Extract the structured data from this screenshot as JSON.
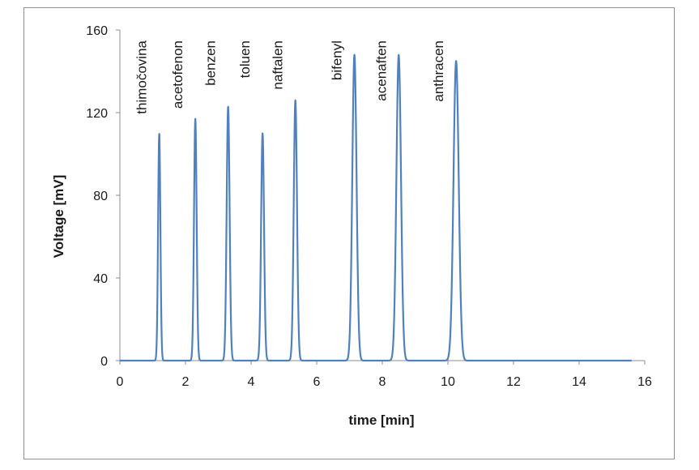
{
  "chart_data": {
    "type": "line",
    "title": "",
    "xlabel": "time [min]",
    "ylabel": "Voltage [mV]",
    "xlim": [
      0,
      16
    ],
    "ylim": [
      0,
      160
    ],
    "xticks": [
      "0",
      "2",
      "4",
      "6",
      "8",
      "10",
      "12",
      "14",
      "16"
    ],
    "yticks": [
      "0",
      "40",
      "80",
      "120",
      "160"
    ],
    "grid": false,
    "legend": "none",
    "series_color": "#4f81bd",
    "baseline_end_x": 15.6,
    "peaks": [
      {
        "label": "thimočovina",
        "x": 1.2,
        "y": 110,
        "width": 0.035
      },
      {
        "label": "acetofenon",
        "x": 2.3,
        "y": 117,
        "width": 0.04
      },
      {
        "label": "benzen",
        "x": 3.3,
        "y": 123,
        "width": 0.045
      },
      {
        "label": "toluen",
        "x": 4.35,
        "y": 110,
        "width": 0.045
      },
      {
        "label": "naftalen",
        "x": 5.35,
        "y": 126,
        "width": 0.05
      },
      {
        "label": "bifenyl",
        "x": 7.15,
        "y": 148,
        "width": 0.065
      },
      {
        "label": "acenaften",
        "x": 8.5,
        "y": 148,
        "width": 0.07
      },
      {
        "label": "anthracen",
        "x": 10.25,
        "y": 145,
        "width": 0.08
      }
    ]
  }
}
